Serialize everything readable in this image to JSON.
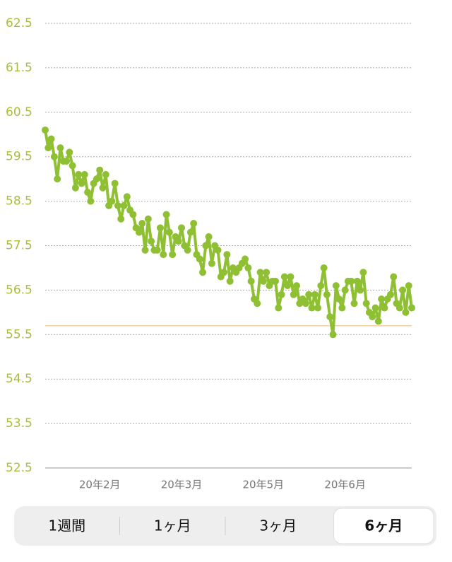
{
  "chart_data": {
    "type": "line",
    "values": [
      60.1,
      59.7,
      59.9,
      59.5,
      59.0,
      59.7,
      59.4,
      59.4,
      59.6,
      59.3,
      58.8,
      59.1,
      58.9,
      59.1,
      58.7,
      58.5,
      58.9,
      59.0,
      59.2,
      58.8,
      59.1,
      58.4,
      58.5,
      58.9,
      58.4,
      58.1,
      58.4,
      58.6,
      58.3,
      58.2,
      57.9,
      57.8,
      58.0,
      57.4,
      58.1,
      57.6,
      57.4,
      57.4,
      57.9,
      57.3,
      58.2,
      57.8,
      57.3,
      57.7,
      57.6,
      57.9,
      57.5,
      57.4,
      57.8,
      58.0,
      57.3,
      57.2,
      56.9,
      57.5,
      57.7,
      57.1,
      57.5,
      57.4,
      56.8,
      56.9,
      57.3,
      56.7,
      57.0,
      56.9,
      57.0,
      57.1,
      57.2,
      57.0,
      56.7,
      56.3,
      56.2,
      56.9,
      56.7,
      56.9,
      56.6,
      56.7,
      56.7,
      56.1,
      56.4,
      56.8,
      56.6,
      56.8,
      56.4,
      56.6,
      56.2,
      56.3,
      56.2,
      56.4,
      56.1,
      56.4,
      56.1,
      56.6,
      57.0,
      56.4,
      55.9,
      55.5,
      56.6,
      56.3,
      56.1,
      56.5,
      56.7,
      56.7,
      56.2,
      56.7,
      56.5,
      56.9,
      56.2,
      56.0,
      55.9,
      56.1,
      55.8,
      56.3,
      56.1,
      56.3,
      56.4,
      56.8,
      56.2,
      56.1,
      56.5,
      56.0,
      56.6,
      56.1
    ],
    "color": "#8fbf32",
    "reference_line": 55.7,
    "reference_color": "#f3cfa6",
    "xlim": [
      0,
      121
    ],
    "xticks": [
      {
        "value": 18,
        "label": "20年2月"
      },
      {
        "value": 45,
        "label": "20年3月"
      },
      {
        "value": 72,
        "label": "20年5月"
      },
      {
        "value": 99,
        "label": "20年6月"
      }
    ],
    "ylim": [
      52.5,
      62.5
    ],
    "yticks": [
      52.5,
      53.5,
      54.5,
      55.5,
      56.5,
      57.5,
      58.5,
      59.5,
      60.5,
      61.5,
      62.5
    ],
    "grid": true
  },
  "segments": {
    "items": [
      "1週間",
      "1ヶ月",
      "3ヶ月",
      "6ヶ月"
    ],
    "selected": 3
  }
}
